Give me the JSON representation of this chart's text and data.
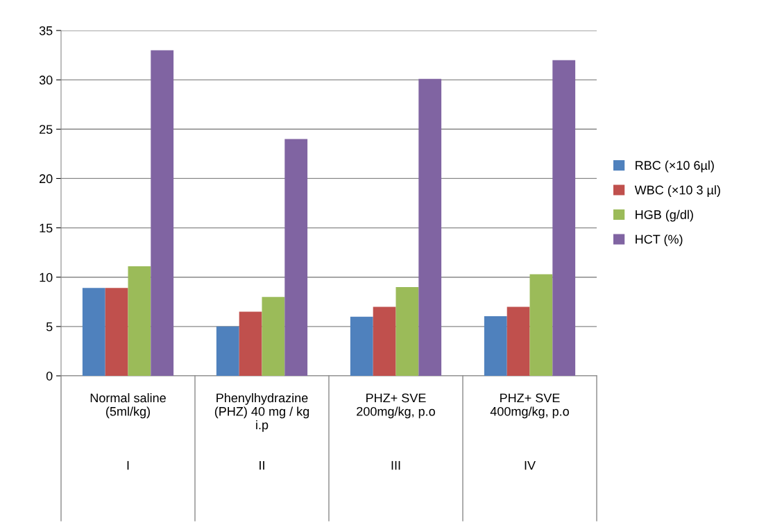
{
  "chart_data": {
    "type": "bar",
    "categories": [
      "Normal saline\n(5ml/kg)\n\n\n\nI",
      "Phenylhydrazine\n(PHZ) 40 mg / kg\ni.p\n\n\nII",
      "PHZ+ SVE\n200mg/kg, p.o\n\n\n\nIII",
      "PHZ+ SVE\n400mg/kg, p.o\n\n\n\nIV"
    ],
    "series": [
      {
        "name": "RBC (×10 6µl)",
        "color": "#4f81bd",
        "values": [
          8.9,
          5.0,
          6.0,
          6.05
        ]
      },
      {
        "name": "WBC (×10 3 µl)",
        "color": "#c0504d",
        "values": [
          8.9,
          6.5,
          7.0,
          7.0
        ]
      },
      {
        "name": "HGB (g/dl)",
        "color": "#9bbb59",
        "values": [
          11.1,
          8.0,
          9.0,
          10.3
        ]
      },
      {
        "name": "HCT (%)",
        "color": "#8064a2",
        "values": [
          33.0,
          24.0,
          30.1,
          32.0
        ]
      }
    ],
    "ylim": [
      0,
      35
    ],
    "yticks": [
      0,
      5,
      10,
      15,
      20,
      25,
      30,
      35
    ],
    "grid": "y",
    "legend": "right"
  }
}
